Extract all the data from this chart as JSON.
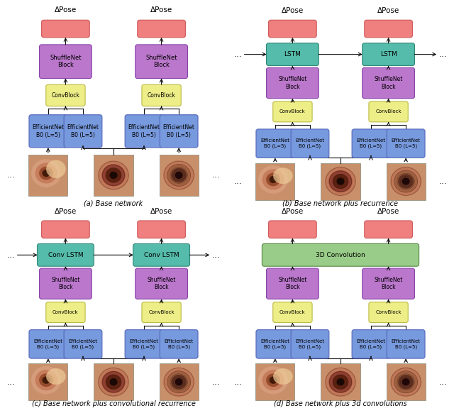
{
  "bg_color": "#ffffff",
  "subfig_labels": [
    "(a) Base network",
    "(b) Base network plus recurrence",
    "(c) Base network plus convolutional recurrence",
    "(d) Base network plus 3d convolutions"
  ],
  "colors": {
    "pose_box": "#f08080",
    "pose_border": "#cc5555",
    "shufflenet_box": "#bb77cc",
    "shufflenet_border": "#8844aa",
    "convblock_box": "#eeee88",
    "convblock_border": "#bbbb44",
    "efficientnet_box": "#7799dd",
    "efficientnet_border": "#5566bb",
    "lstm_box": "#55bbaa",
    "lstm_border": "#338877",
    "conv3d_box": "#99cc88",
    "conv3d_border": "#558844",
    "arrow_color": "#111111",
    "dots_color": "#333333"
  }
}
